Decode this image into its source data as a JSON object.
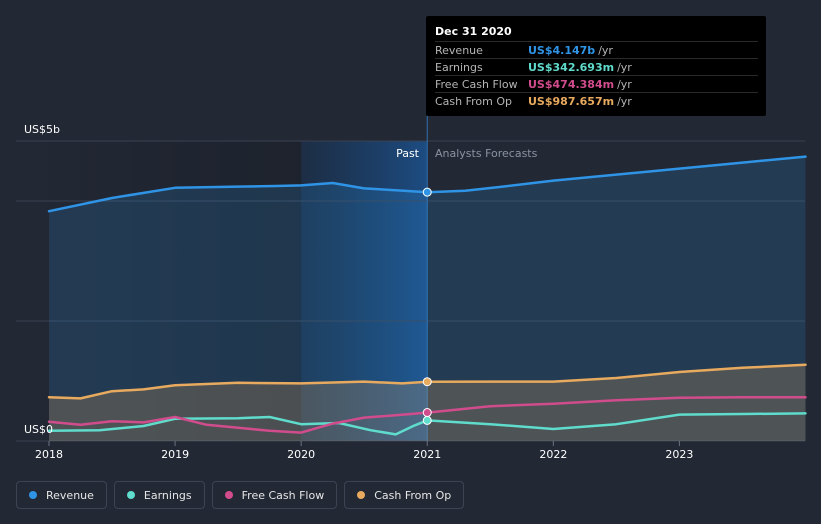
{
  "chart_data": {
    "type": "line",
    "y_axis": {
      "top_label": "US$5b",
      "bottom_label": "US$0",
      "ylim": [
        0,
        5
      ]
    },
    "x_ticks": [
      "2018",
      "2019",
      "2020",
      "2021",
      "2022",
      "2023"
    ],
    "x_range": [
      2018.0,
      2024.0
    ],
    "divider_x": 2021.0,
    "past_label": "Past",
    "forecast_label": "Analysts Forecasts",
    "series": [
      {
        "name": "Revenue",
        "color": "#2f94e6",
        "points": [
          [
            2018.0,
            3.83
          ],
          [
            2018.5,
            4.05
          ],
          [
            2019.0,
            4.22
          ],
          [
            2019.5,
            4.24
          ],
          [
            2019.8,
            4.25
          ],
          [
            2020.0,
            4.26
          ],
          [
            2020.25,
            4.3
          ],
          [
            2020.5,
            4.21
          ],
          [
            2020.75,
            4.18
          ],
          [
            2021.0,
            4.147
          ],
          [
            2021.3,
            4.17
          ],
          [
            2021.6,
            4.24
          ],
          [
            2022.0,
            4.34
          ],
          [
            2022.5,
            4.44
          ],
          [
            2023.0,
            4.54
          ],
          [
            2023.5,
            4.64
          ],
          [
            2024.0,
            4.74
          ]
        ]
      },
      {
        "name": "Earnings",
        "color": "#5fdccc",
        "points": [
          [
            2018.0,
            0.17
          ],
          [
            2018.4,
            0.18
          ],
          [
            2018.75,
            0.25
          ],
          [
            2019.0,
            0.37
          ],
          [
            2019.5,
            0.38
          ],
          [
            2019.75,
            0.4
          ],
          [
            2020.0,
            0.28
          ],
          [
            2020.3,
            0.3
          ],
          [
            2020.55,
            0.18
          ],
          [
            2020.75,
            0.11
          ],
          [
            2020.9,
            0.26
          ],
          [
            2021.0,
            0.343
          ],
          [
            2021.5,
            0.28
          ],
          [
            2022.0,
            0.2
          ],
          [
            2022.5,
            0.28
          ],
          [
            2023.0,
            0.44
          ],
          [
            2023.5,
            0.45
          ],
          [
            2024.0,
            0.46
          ]
        ]
      },
      {
        "name": "Free Cash Flow",
        "color": "#d14c8c",
        "points": [
          [
            2018.0,
            0.32
          ],
          [
            2018.25,
            0.27
          ],
          [
            2018.5,
            0.33
          ],
          [
            2018.75,
            0.31
          ],
          [
            2019.0,
            0.4
          ],
          [
            2019.25,
            0.27
          ],
          [
            2019.5,
            0.22
          ],
          [
            2019.75,
            0.17
          ],
          [
            2020.0,
            0.14
          ],
          [
            2020.25,
            0.29
          ],
          [
            2020.5,
            0.39
          ],
          [
            2020.75,
            0.43
          ],
          [
            2021.0,
            0.474
          ],
          [
            2021.5,
            0.58
          ],
          [
            2022.0,
            0.62
          ],
          [
            2022.5,
            0.68
          ],
          [
            2023.0,
            0.72
          ],
          [
            2023.5,
            0.73
          ],
          [
            2024.0,
            0.73
          ]
        ]
      },
      {
        "name": "Cash From Op",
        "color": "#e8aa5e",
        "points": [
          [
            2018.0,
            0.73
          ],
          [
            2018.25,
            0.71
          ],
          [
            2018.5,
            0.83
          ],
          [
            2018.75,
            0.86
          ],
          [
            2019.0,
            0.93
          ],
          [
            2019.5,
            0.97
          ],
          [
            2020.0,
            0.96
          ],
          [
            2020.5,
            0.99
          ],
          [
            2020.8,
            0.96
          ],
          [
            2021.0,
            0.988
          ],
          [
            2021.5,
            0.99
          ],
          [
            2022.0,
            0.99
          ],
          [
            2022.5,
            1.05
          ],
          [
            2023.0,
            1.15
          ],
          [
            2023.5,
            1.22
          ],
          [
            2024.0,
            1.27
          ]
        ]
      }
    ],
    "highlight_x": 2021.0
  },
  "tooltip": {
    "title": "Dec 31 2020",
    "rows": [
      {
        "label": "Revenue",
        "value": "US$4.147b",
        "unit": "/yr",
        "color": "#2f94e6"
      },
      {
        "label": "Earnings",
        "value": "US$342.693m",
        "unit": "/yr",
        "color": "#5fdccc"
      },
      {
        "label": "Free Cash Flow",
        "value": "US$474.384m",
        "unit": "/yr",
        "color": "#d14c8c"
      },
      {
        "label": "Cash From Op",
        "value": "US$987.657m",
        "unit": "/yr",
        "color": "#e8aa5e"
      }
    ]
  },
  "legend": [
    {
      "label": "Revenue",
      "color": "#2f94e6"
    },
    {
      "label": "Earnings",
      "color": "#5fdccc"
    },
    {
      "label": "Free Cash Flow",
      "color": "#d14c8c"
    },
    {
      "label": "Cash From Op",
      "color": "#e8aa5e"
    }
  ]
}
